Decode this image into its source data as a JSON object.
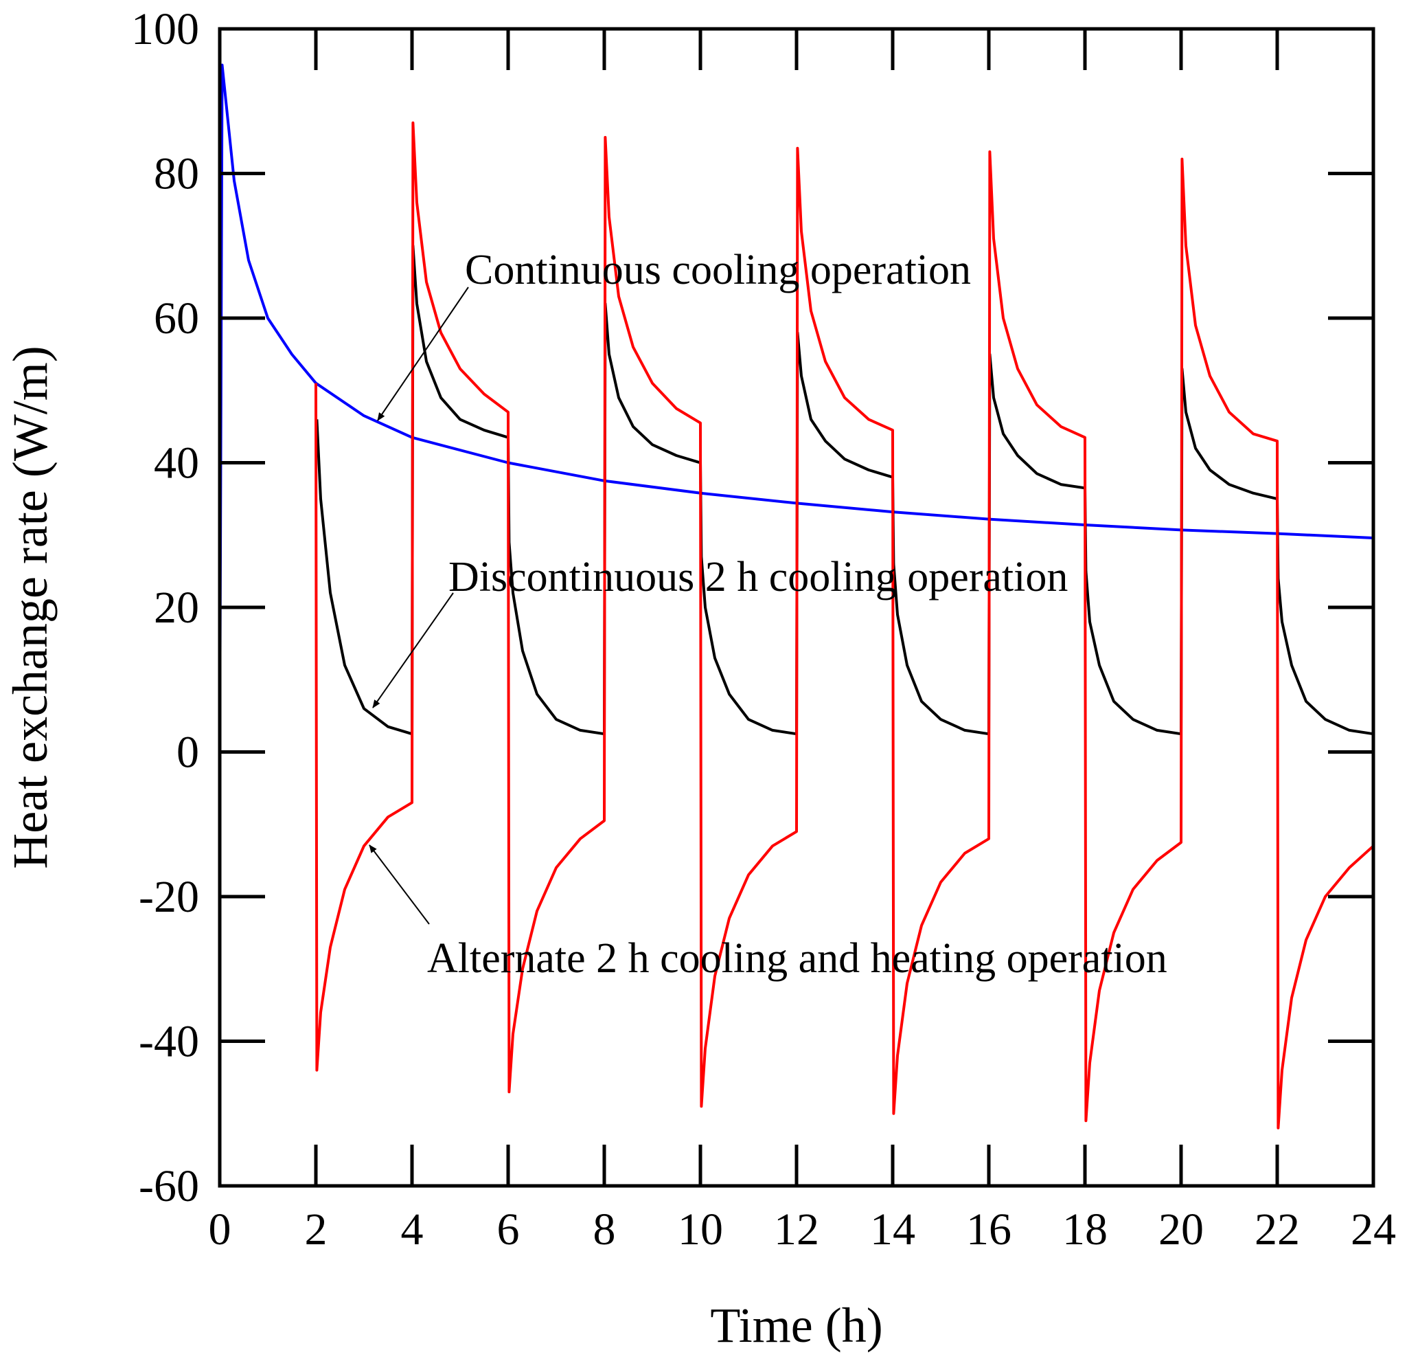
{
  "chart_data": {
    "type": "line",
    "title": "",
    "xlabel": "Time (h)",
    "ylabel": "Heat exchange rate (W/m)",
    "xlim": [
      0,
      24
    ],
    "ylim": [
      -60,
      100
    ],
    "xticks": [
      0,
      2,
      4,
      6,
      8,
      10,
      12,
      14,
      16,
      18,
      20,
      22,
      24
    ],
    "yticks": [
      -60,
      -40,
      -20,
      0,
      20,
      40,
      60,
      80,
      100
    ],
    "grid": false,
    "series": [
      {
        "name": "Continuous cooling operation",
        "color": "#0000ff",
        "x": [
          0,
          0.05,
          0.3,
          0.6,
          1,
          1.5,
          2,
          3,
          4,
          6,
          8,
          10,
          12,
          14,
          16,
          18,
          20,
          22,
          24
        ],
        "y": [
          0,
          95,
          79,
          68,
          60,
          55,
          51,
          46.5,
          43.5,
          40,
          37.5,
          35.8,
          34.4,
          33.2,
          32.2,
          31.4,
          30.7,
          30.2,
          29.6
        ]
      },
      {
        "name": "Discontinuous 2 h cooling operation",
        "color": "#000000",
        "x": [
          2.02,
          2.1,
          2.3,
          2.6,
          3,
          3.5,
          4,
          4.02,
          4.1,
          4.3,
          4.6,
          5,
          5.5,
          6,
          6.02,
          6.1,
          6.3,
          6.6,
          7,
          7.5,
          8,
          8.02,
          8.1,
          8.3,
          8.6,
          9,
          9.5,
          10,
          10.02,
          10.1,
          10.3,
          10.6,
          11,
          11.5,
          12,
          12.02,
          12.1,
          12.3,
          12.6,
          13,
          13.5,
          14,
          14.02,
          14.1,
          14.3,
          14.6,
          15,
          15.5,
          16,
          16.02,
          16.1,
          16.3,
          16.6,
          17,
          17.5,
          18,
          18.02,
          18.1,
          18.3,
          18.6,
          19,
          19.5,
          20,
          20.02,
          20.1,
          20.3,
          20.6,
          21,
          21.5,
          22,
          22.02,
          22.1,
          22.3,
          22.6,
          23,
          23.5,
          24
        ],
        "y": [
          46,
          35,
          22,
          12,
          6,
          3.5,
          2.5,
          70,
          62,
          54,
          49,
          46,
          44.5,
          43.5,
          29,
          22,
          14,
          8,
          4.5,
          3,
          2.5,
          62,
          55,
          49,
          45,
          42.5,
          41,
          40,
          27,
          20,
          13,
          8,
          4.5,
          3,
          2.5,
          58,
          52,
          46,
          43,
          40.5,
          39,
          38,
          26,
          19,
          12,
          7,
          4.5,
          3,
          2.5,
          55,
          49,
          44,
          41,
          38.5,
          37,
          36.5,
          25,
          18,
          12,
          7,
          4.5,
          3,
          2.5,
          53,
          47,
          42,
          39,
          37,
          35.8,
          35,
          24,
          18,
          12,
          7,
          4.5,
          3,
          2.5
        ]
      },
      {
        "name": "Alternate 2 h cooling and heating operation",
        "color": "#ff0000",
        "x": [
          2,
          2.02,
          2.1,
          2.3,
          2.6,
          3,
          3.5,
          4,
          4.02,
          4.1,
          4.3,
          4.6,
          5,
          5.5,
          6,
          6.02,
          6.1,
          6.3,
          6.6,
          7,
          7.5,
          8,
          8.02,
          8.1,
          8.3,
          8.6,
          9,
          9.5,
          10,
          10.02,
          10.1,
          10.3,
          10.6,
          11,
          11.5,
          12,
          12.02,
          12.1,
          12.3,
          12.6,
          13,
          13.5,
          14,
          14.02,
          14.1,
          14.3,
          14.6,
          15,
          15.5,
          16,
          16.02,
          16.1,
          16.3,
          16.6,
          17,
          17.5,
          18,
          18.02,
          18.1,
          18.3,
          18.6,
          19,
          19.5,
          20,
          20.02,
          20.1,
          20.3,
          20.6,
          21,
          21.5,
          22,
          22.02,
          22.1,
          22.3,
          22.6,
          23,
          23.5,
          24
        ],
        "y": [
          51,
          -44,
          -36,
          -27,
          -19,
          -13,
          -9,
          -7,
          87,
          76,
          65,
          58,
          53,
          49.5,
          47,
          -47,
          -39,
          -30,
          -22,
          -16,
          -12,
          -9.5,
          85,
          74,
          63,
          56,
          51,
          47.5,
          45.5,
          -49,
          -41,
          -31,
          -23,
          -17,
          -13,
          -11,
          83.5,
          72,
          61,
          54,
          49,
          46,
          44.5,
          -50,
          -42,
          -32,
          -24,
          -18,
          -14,
          -12,
          83,
          71,
          60,
          53,
          48,
          45,
          43.5,
          -51,
          -43,
          -33,
          -25,
          -19,
          -15,
          -12.5,
          82,
          70,
          59,
          52,
          47,
          44,
          43,
          -52,
          -44,
          -34,
          -26,
          -20,
          -16,
          -13
        ]
      }
    ],
    "annotations": [
      {
        "text": "Continuous cooling operation",
        "series": "Continuous cooling operation"
      },
      {
        "text": "Discontinuous 2 h cooling operation",
        "series": "Discontinuous 2 h cooling operation"
      },
      {
        "text": "Alternate 2 h cooling and heating operation",
        "series": "Alternate 2 h cooling and heating operation"
      }
    ]
  }
}
